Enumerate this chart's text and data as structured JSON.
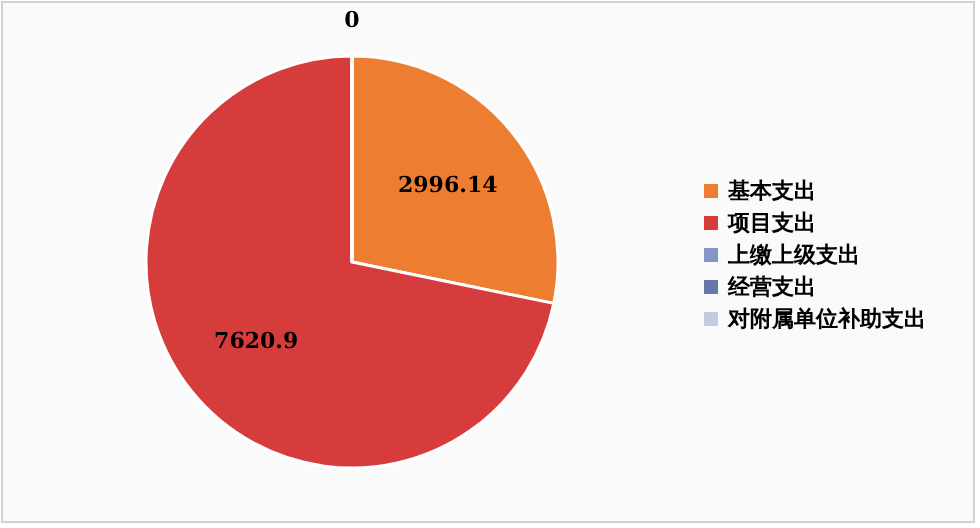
{
  "chart_data": {
    "type": "pie",
    "categories": [
      "基本支出",
      "项目支出",
      "上缴上级支出",
      "经营支出",
      "对附属单位补助支出"
    ],
    "values": [
      2996.14,
      7620.9,
      0,
      0,
      0
    ],
    "colors": [
      "#ed7d31",
      "#d63c3c",
      "#8595c4",
      "#6677aa",
      "#c5cadf"
    ],
    "value_labels": [
      "2996.14",
      "7620.9",
      "0",
      null,
      null
    ],
    "legend": "right"
  }
}
